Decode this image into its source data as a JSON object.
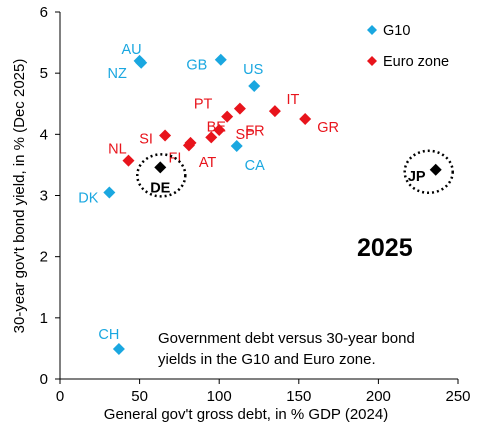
{
  "chart_data": {
    "type": "scatter",
    "xlabel": "General gov't gross debt, in % GDP (2024)",
    "ylabel": "30-year gov't bond yield, in % (Dec 2025)",
    "xlim": [
      0,
      250
    ],
    "ylim": [
      0,
      6
    ],
    "x_ticks": [
      "0",
      "50",
      "100",
      "150",
      "200",
      "250"
    ],
    "y_ticks": [
      "0",
      "1",
      "2",
      "3",
      "4",
      "5",
      "6"
    ],
    "grid": false,
    "legend_position": "top-right",
    "annotation_year": "2025",
    "annotation_note": [
      "Government debt versus 30-year bond",
      "yields in the G10 and Euro zone."
    ],
    "series": [
      {
        "name": "G10",
        "color": "#1AA7E0",
        "marker": "diamond",
        "points": [
          {
            "label": "AU",
            "x": 50,
            "y": 5.2
          },
          {
            "label": "NZ",
            "x": 51,
            "y": 5.17
          },
          {
            "label": "GB",
            "x": 101,
            "y": 5.22
          },
          {
            "label": "US",
            "x": 122,
            "y": 4.79
          },
          {
            "label": "CA",
            "x": 111,
            "y": 3.81
          },
          {
            "label": "DK",
            "x": 31,
            "y": 3.05
          },
          {
            "label": "CH",
            "x": 37,
            "y": 0.49
          }
        ]
      },
      {
        "name": "Euro zone",
        "color": "#E8141C",
        "marker": "diamond",
        "points": [
          {
            "label": "NL",
            "x": 43,
            "y": 3.57
          },
          {
            "label": "SI",
            "x": 66,
            "y": 3.98
          },
          {
            "label": "FI",
            "x": 81,
            "y": 3.82
          },
          {
            "label": "AT",
            "x": 82,
            "y": 3.86
          },
          {
            "label": "BE",
            "x": 95,
            "y": 3.95
          },
          {
            "label": "SP",
            "x": 100,
            "y": 4.07
          },
          {
            "label": "PT",
            "x": 105,
            "y": 4.29
          },
          {
            "label": "FR",
            "x": 113,
            "y": 4.42
          },
          {
            "label": "IT",
            "x": 135,
            "y": 4.38
          },
          {
            "label": "GR",
            "x": 154,
            "y": 4.25
          }
        ]
      },
      {
        "color": "#000000",
        "marker": "diamond",
        "points": [
          {
            "label": "DE",
            "x": 63,
            "y": 3.46
          },
          {
            "label": "JP",
            "x": 236,
            "y": 3.42
          }
        ]
      }
    ]
  }
}
